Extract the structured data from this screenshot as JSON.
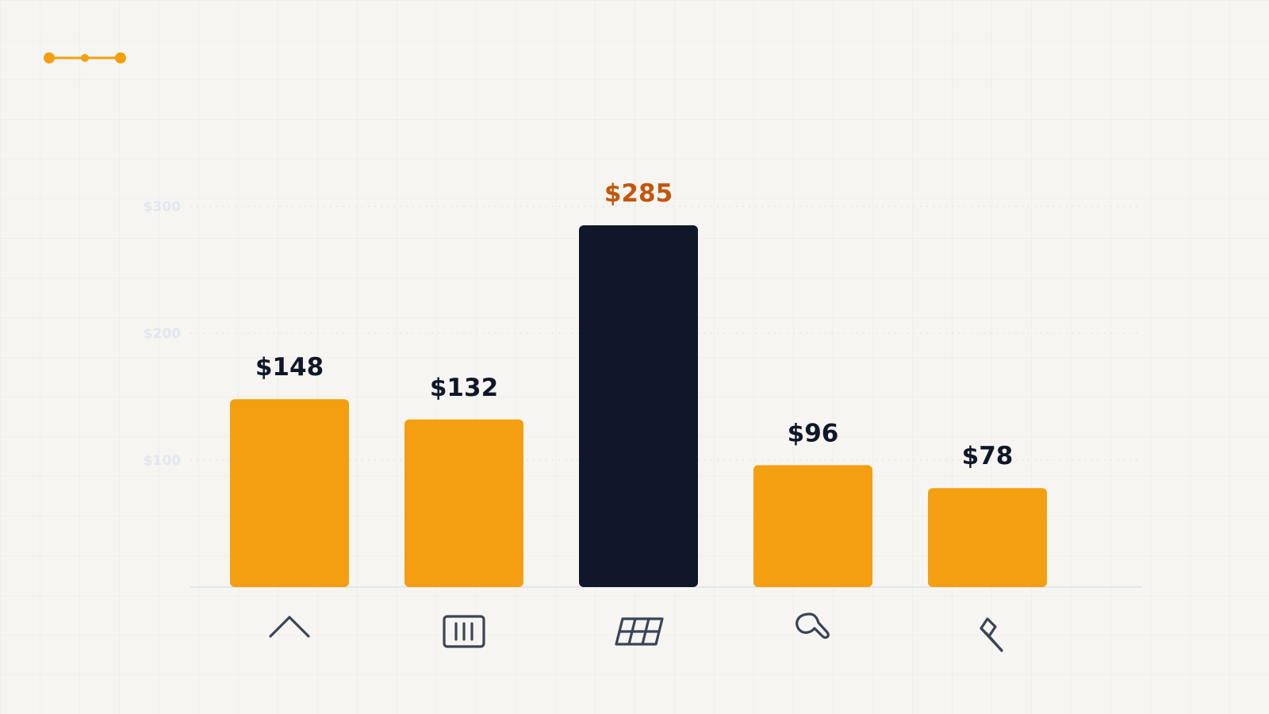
{
  "chart_data": {
    "type": "bar",
    "categories": [
      "",
      "",
      "",
      "",
      ""
    ],
    "category_icons": [
      "chevron-up-icon",
      "storage-box-icon",
      "solar-panel-icon",
      "blower-icon",
      "axe-icon"
    ],
    "values": [
      148,
      132,
      285,
      96,
      78
    ],
    "value_labels": [
      "$148",
      "$132",
      "$285",
      "$96",
      "$78"
    ],
    "highlight_index": 2,
    "yticks": [
      100,
      200,
      300
    ],
    "ytick_labels": [
      "$100",
      "$200",
      "$300"
    ],
    "ylim": [
      0,
      300
    ],
    "grid": true,
    "title": "",
    "xlabel": "",
    "ylabel": ""
  },
  "colors": {
    "bar": "#f39f0f",
    "highlight_bar": "#10172a",
    "highlight_label": "#c2570c",
    "label": "#10172a",
    "axis": "#e2e5ea",
    "grid": "#e3e5ea",
    "tick_label": "#e1e6ef",
    "icon": "#3b4456",
    "accent": "#f39f0f"
  }
}
